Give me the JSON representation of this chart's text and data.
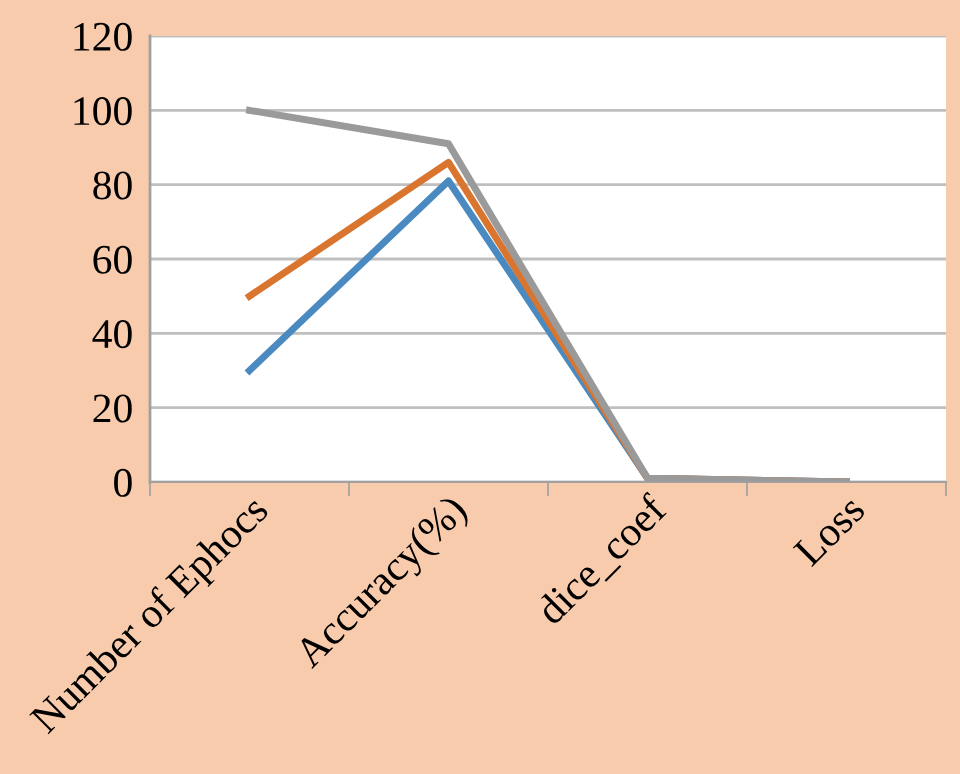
{
  "chart_data": {
    "type": "line",
    "categories": [
      "Number of Ephocs",
      "Accuracy(%)",
      "dice_coef",
      "Loss"
    ],
    "series": [
      {
        "color": "#4a8ac0",
        "values": [
          30,
          81,
          1,
          0
        ]
      },
      {
        "color": "#d9752e",
        "values": [
          50,
          86,
          1,
          0
        ]
      },
      {
        "color": "#9a9a9a",
        "values": [
          100,
          91,
          1,
          0
        ]
      }
    ],
    "ylim": [
      0,
      120
    ],
    "yticks": [
      0,
      20,
      40,
      60,
      80,
      100,
      120
    ],
    "grid": "y",
    "legend": false
  }
}
